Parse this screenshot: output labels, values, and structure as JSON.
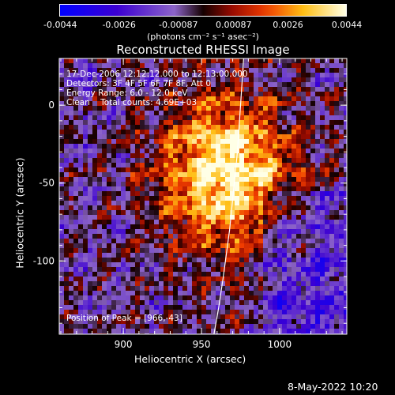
{
  "colorbar": {
    "ticks": [
      "-0.0044",
      "-0.0026",
      "-0.00087",
      "0.00087",
      "0.0026",
      "0.0044"
    ],
    "units": "(photons cm⁻² s⁻¹ asec⁻²)"
  },
  "chart_data": {
    "type": "heatmap",
    "title": "Reconstructed RHESSI Image",
    "xlabel": "Heliocentric X (arcsec)",
    "ylabel": "Heliocentric Y (arcsec)",
    "xlim": [
      859,
      1043
    ],
    "ylim": [
      -147,
      30
    ],
    "x_ticks": [
      "900",
      "950",
      "1000"
    ],
    "y_ticks": [
      "0",
      "-50",
      "-100"
    ],
    "value_range": [
      -0.0044,
      0.0044
    ],
    "peak": [
      966,
      -43
    ],
    "colormap": "RHESSI hot/blue-purple",
    "annotations": [
      "17-Dec-2006 12:12:12.000 to 12:13:00.000",
      "Detectors: 3F 4F 5F 6F 7F 8F, Att 0",
      "Energy Range: 6.0 - 12.0 keV",
      "Clean    Total counts: 4.69E+03"
    ],
    "peak_label": "Position of Peak = [966,-43]",
    "limb_curve": [
      [
        977,
        30
      ],
      [
        975,
        0
      ],
      [
        973,
        -30
      ],
      [
        971,
        -50
      ],
      [
        968,
        -80
      ],
      [
        964,
        -110
      ],
      [
        961,
        -130
      ],
      [
        958,
        -147
      ]
    ]
  },
  "timestamp": "8-May-2022 10:20"
}
